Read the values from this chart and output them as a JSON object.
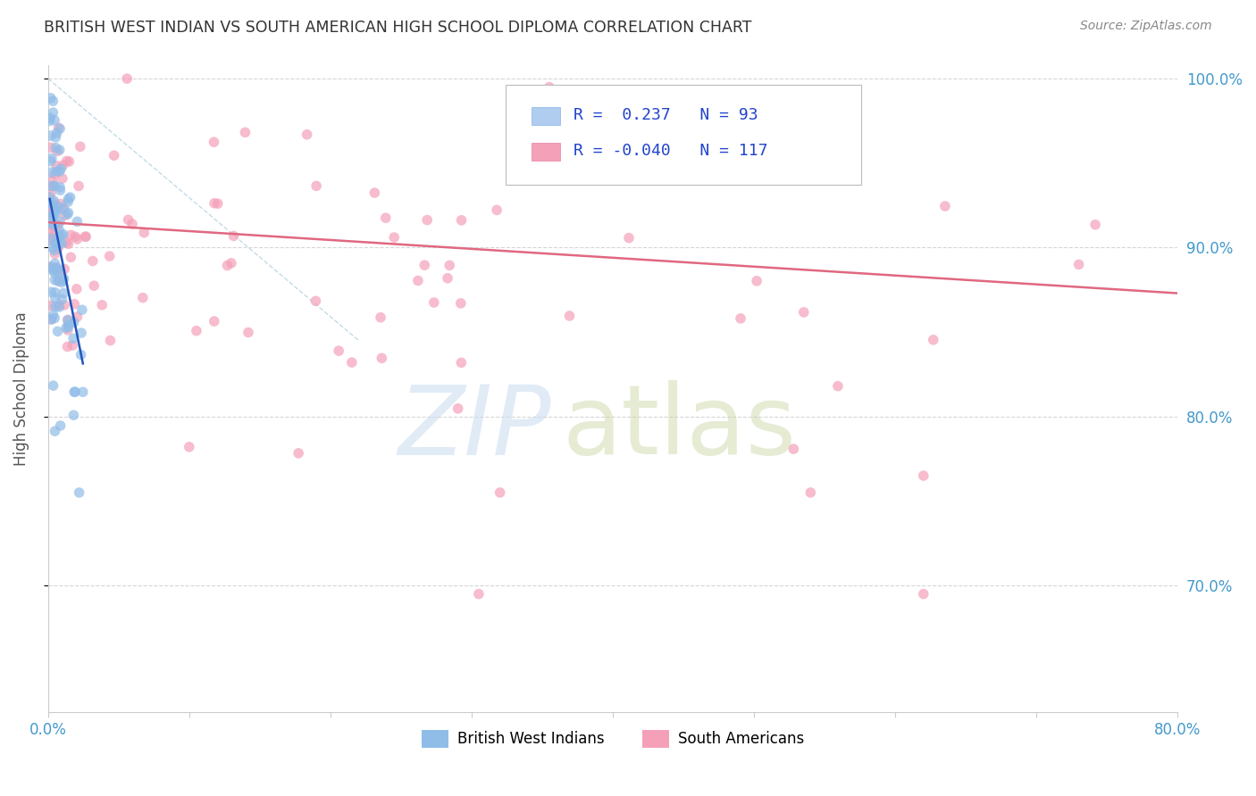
{
  "title": "BRITISH WEST INDIAN VS SOUTH AMERICAN HIGH SCHOOL DIPLOMA CORRELATION CHART",
  "source": "Source: ZipAtlas.com",
  "ylabel": "High School Diploma",
  "r_bwi": 0.237,
  "n_bwi": 93,
  "r_sa": -0.04,
  "n_sa": 117,
  "xlim": [
    0.0,
    0.8
  ],
  "ylim": [
    0.625,
    1.008
  ],
  "color_bwi": "#90bce8",
  "color_sa": "#f4a0b8",
  "color_bwi_line": "#2255bb",
  "color_sa_line": "#e06880",
  "title_color": "#333333",
  "source_color": "#888888",
  "axis_label_color": "#4499cc",
  "grid_color": "#cccccc",
  "diag_color": "#aaccdd"
}
